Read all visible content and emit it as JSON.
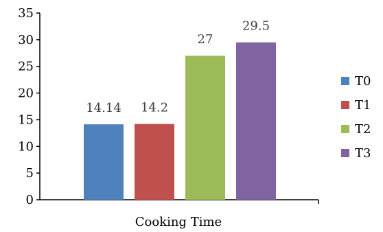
{
  "chart_data": {
    "type": "bar",
    "title": "",
    "xlabel": "Cooking Time",
    "ylabel": "",
    "ylim": [
      0,
      35
    ],
    "yticks": [
      0,
      5,
      10,
      15,
      20,
      25,
      30,
      35
    ],
    "grid": false,
    "legend_position": "right",
    "series": [
      {
        "name": "T0",
        "value": 14.14,
        "label": "14.14",
        "color": "#4f81bd"
      },
      {
        "name": "T1",
        "value": 14.2,
        "label": "14.2",
        "color": "#c0504d"
      },
      {
        "name": "T2",
        "value": 27,
        "label": "27",
        "color": "#9bbb59"
      },
      {
        "name": "T3",
        "value": 29.5,
        "label": "29.5",
        "color": "#8064a2"
      }
    ]
  }
}
